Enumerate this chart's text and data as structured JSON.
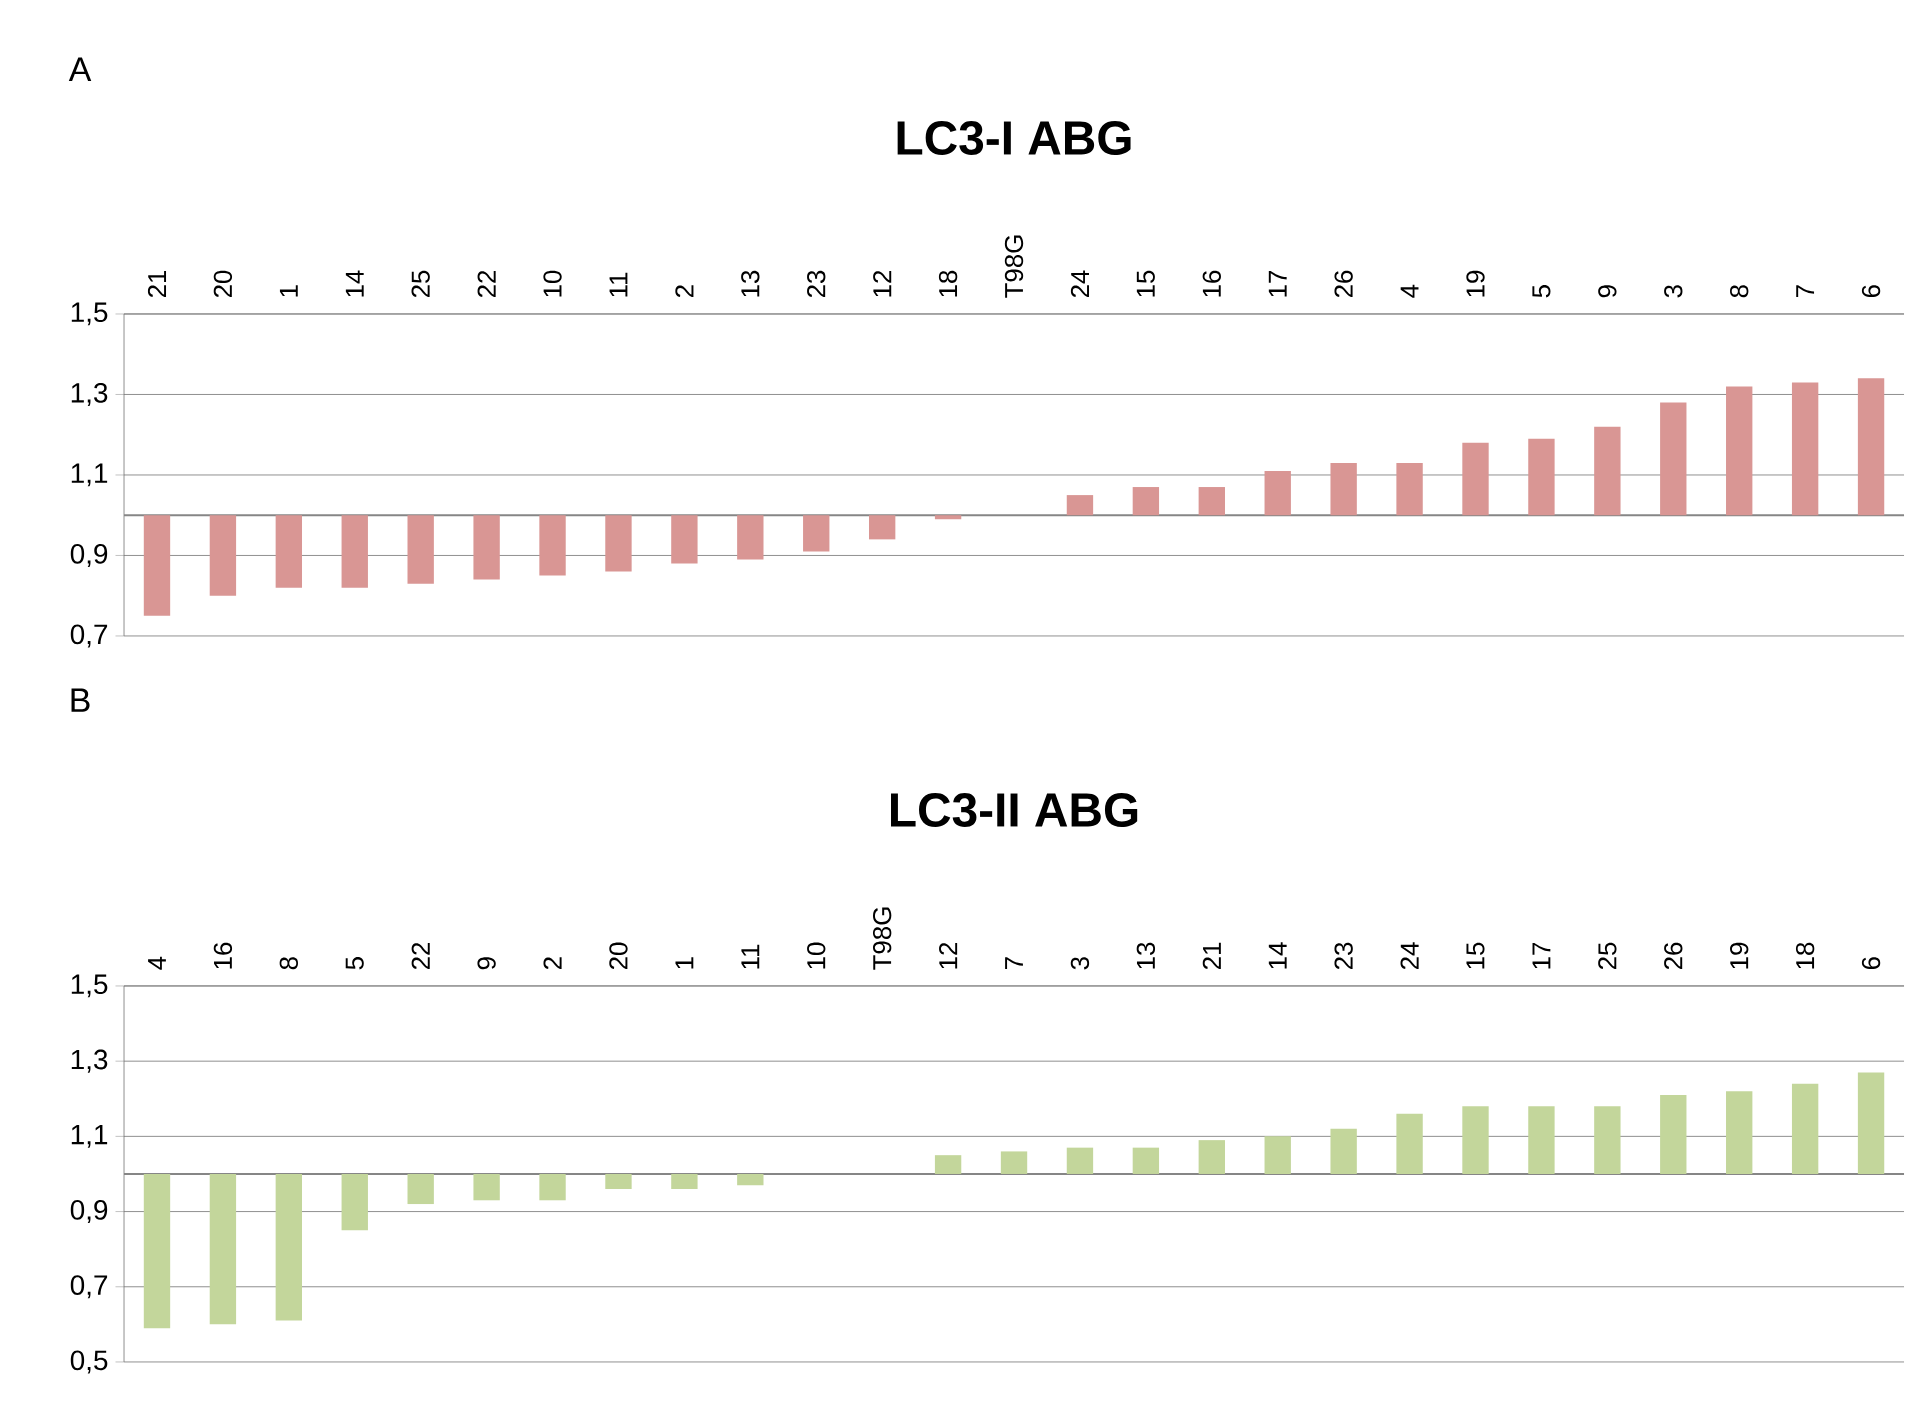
{
  "chart_data": [
    {
      "type": "bar",
      "title": "LC3-I ABG",
      "annotations": [
        "A"
      ],
      "categories": [
        "21",
        "20",
        "1",
        "14",
        "25",
        "22",
        "10",
        "11",
        "2",
        "13",
        "23",
        "12",
        "18",
        "T98G",
        "24",
        "15",
        "16",
        "17",
        "26",
        "4",
        "19",
        "5",
        "9",
        "3",
        "8",
        "7",
        "6"
      ],
      "base": [
        1,
        1,
        1,
        1,
        1,
        1,
        1,
        1,
        1,
        1,
        1,
        1,
        1,
        null,
        1,
        1,
        1,
        1,
        1,
        1,
        1,
        1,
        1,
        1,
        1,
        1,
        1
      ],
      "values": [
        -0.25,
        -0.2,
        -0.18,
        -0.18,
        -0.17,
        -0.16,
        -0.15,
        -0.14,
        -0.12,
        -0.11,
        -0.09,
        -0.06,
        -0.01,
        null,
        0.05,
        0.07,
        0.07,
        0.11,
        0.13,
        0.13,
        0.18,
        0.19,
        0.22,
        0.28,
        0.32,
        0.33,
        0.34
      ],
      "color": "#d99694",
      "ylim": [
        0.7,
        1.5
      ],
      "yticks": [
        {
          "value": 0.7,
          "label": "0,7"
        },
        {
          "value": 0.9,
          "label": "0,9"
        },
        {
          "value": 1.1,
          "label": "1,1"
        },
        {
          "value": 1.3,
          "label": "1,3"
        },
        {
          "value": 1.5,
          "label": "1,5"
        }
      ],
      "ref_lines": [
        {
          "axis": "y",
          "value": 1.0,
          "color": "#868686"
        }
      ],
      "grid": "y"
    },
    {
      "type": "bar",
      "title": "LC3-II ABG",
      "annotations": [
        "B"
      ],
      "categories": [
        "4",
        "16",
        "8",
        "5",
        "22",
        "9",
        "2",
        "20",
        "1",
        "11",
        "10",
        "T98G",
        "12",
        "7",
        "3",
        "13",
        "21",
        "14",
        "23",
        "24",
        "15",
        "17",
        "25",
        "26",
        "19",
        "18",
        "6"
      ],
      "base": [
        1,
        1,
        1,
        1,
        1,
        1,
        1,
        1,
        1,
        1,
        null,
        null,
        1,
        1,
        1,
        1,
        1,
        1,
        1,
        1,
        1,
        1,
        1,
        1,
        1,
        1,
        1
      ],
      "values": [
        -0.41,
        -0.4,
        -0.39,
        -0.15,
        -0.08,
        -0.07,
        -0.07,
        -0.04,
        -0.04,
        -0.03,
        null,
        null,
        0.05,
        0.06,
        0.07,
        0.07,
        0.09,
        0.1,
        0.12,
        0.16,
        0.18,
        0.18,
        0.18,
        0.21,
        0.22,
        0.24,
        0.27
      ],
      "color": "#c3d69b",
      "ylim": [
        0.5,
        1.5
      ],
      "yticks": [
        {
          "value": 0.5,
          "label": "0,5"
        },
        {
          "value": 0.7,
          "label": "0,7"
        },
        {
          "value": 0.9,
          "label": "0,9"
        },
        {
          "value": 1.1,
          "label": "1,1"
        },
        {
          "value": 1.3,
          "label": "1,3"
        },
        {
          "value": 1.5,
          "label": "1,5"
        }
      ],
      "ref_lines": [
        {
          "axis": "y",
          "value": 1.0,
          "color": "#868686"
        }
      ],
      "grid": "y"
    }
  ]
}
